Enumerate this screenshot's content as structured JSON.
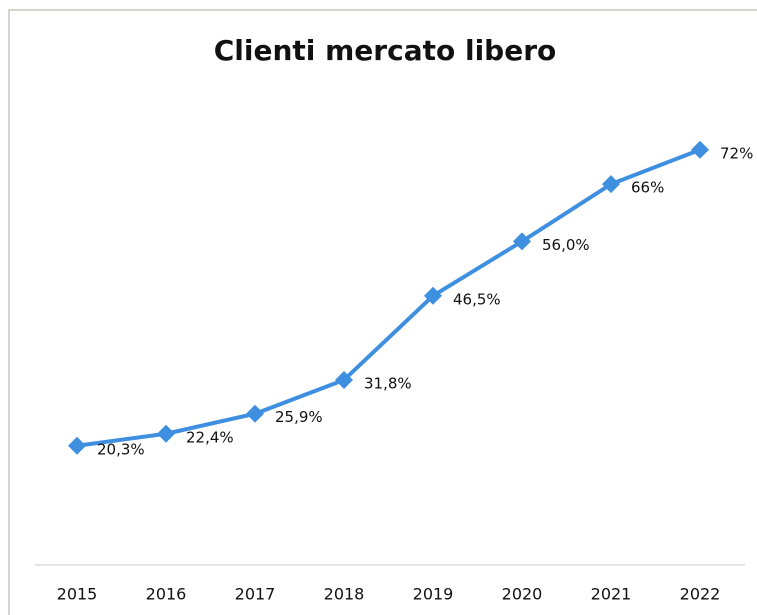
{
  "chart_data": {
    "type": "line",
    "title": "Clienti mercato libero",
    "categories": [
      "2015",
      "2016",
      "2017",
      "2018",
      "2019",
      "2020",
      "2021",
      "2022"
    ],
    "values": [
      20.3,
      22.4,
      25.9,
      31.8,
      46.5,
      56.0,
      66,
      72
    ],
    "value_labels": [
      "20,3%",
      "22,4%",
      "25,9%",
      "31,8%",
      "46,5%",
      "56,0%",
      "66%",
      "72%"
    ],
    "color": "#3f8fe0",
    "ylim": [
      0,
      80
    ]
  }
}
